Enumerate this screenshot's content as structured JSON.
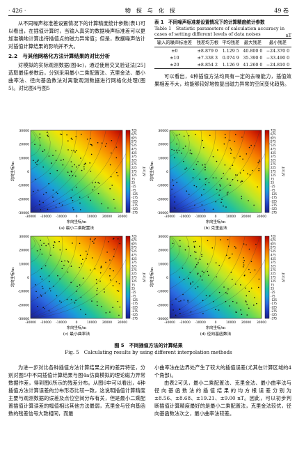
{
  "header": {
    "page": "· 426 ·",
    "journal": "物　探　与　化　探",
    "volume": "49 卷"
  },
  "left_top": {
    "p1": "从不同噪声标准差设置情况下的计算精度统计参数(表1)可以看出，在插值计算时，当输入真实的数据噪声标准差可以更加准确地计算出待插值点的磁力异常值；但是，数据噪声估计对插值计算结果的影响并不大。",
    "section": "2.2　与其他网格化方法计算结果的对比分析",
    "p2": "对模拟的实际观测数据(图4c)，通过使用交叉验证法[25]选取最佳参数后，分别采用最小二乘配置法、克里金法、最小曲率法、径向基函数法对离散观测数据进行网格化处理(图5)。对比图4与图5"
  },
  "table1": {
    "title_cn": "表 1　不同噪声标准差设置情况下的计算精度统计参数",
    "title_en": "Table 1　Statistic parameters of calculation accuracy in cases of setting different levels of data noises",
    "unit": "nT",
    "headers": [
      "输入的噪声标准差",
      "残差均方根",
      "平均残差",
      "最大残差",
      "最小残差"
    ],
    "rows": [
      [
        "±0",
        "±8.879 0",
        "1.129 5",
        "40.800 0",
        "−24.370 0"
      ],
      [
        "±10",
        "±7.338 3",
        "0.074 9",
        "35.390 0",
        "−33.490 0"
      ],
      [
        "±20",
        "±8.854 2",
        "1.126 9",
        "41.260 0",
        "−24.810 0"
      ]
    ]
  },
  "right_top": {
    "p1": "可以看出，4种插值方法均具有一定的去噪能力，插值效果相差不大，均能够较好地恢复出磁力异常的空间变化趋势。"
  },
  "figure": {
    "panels": [
      {
        "label": "(a) 最小二乘配置法"
      },
      {
        "label": "(b) 克里金法"
      },
      {
        "label": "(c) 最小曲率法"
      },
      {
        "label": "(d) 径向基函数法"
      }
    ],
    "xlabel": "东向坐标/m",
    "ylabel": "北向坐标/m",
    "xticks": [
      "-30000",
      "-20000",
      "-10000",
      "0",
      "10000",
      "20000",
      "30000"
    ],
    "yticks": [
      "30000",
      "20000",
      "10000",
      "0",
      "-10000",
      "-20000",
      "-30000"
    ],
    "colorbar_ticks": [
      "725",
      "675",
      "625",
      "575",
      "525",
      "475",
      "425",
      "375",
      "325",
      "275",
      "225",
      "175",
      "125",
      "75",
      "25",
      "-25",
      "-75",
      "-125",
      "-175",
      "-225",
      "-275",
      "-325",
      "-375"
    ],
    "colorbar_unit": "ΔT/nT",
    "colors": [
      "#b30000",
      "#e03a00",
      "#f57a00",
      "#f9b400",
      "#f5e300",
      "#b6e62e",
      "#5cd65c",
      "#20c0a0",
      "#1aa0d8",
      "#2c6be0",
      "#1f3cc0",
      "#1a1f8a"
    ],
    "caption_cn": "图 5　不同插值方法的计算结果",
    "caption_en": "Fig. 5　Calculating results by using different interpolation methods"
  },
  "bottom_left": {
    "p1": "为进一步对比各种插值方法计算结果之间的差异特征，分别对图5中不同插值计算结果与图4a仿真模拟的理论磁力异常数据作差，得到图6所示的残差分布。从图6中可以看出，4种插值方法计算误差的分布形态比较一致，这说明插值计算精度主要与观测数据的误差及点位空间分布有关，但是最小二乘配置插值计算误差的幅值相比其他方法最弱，克里金与径向基函数的残差信号大致相同，而最"
  },
  "bottom_right": {
    "p1": "小曲率法在边界处产生了较大的插值误差(尤其在计算区域的4个角部)。",
    "p2": "由表2可见，最小二乘配置法、克里金法、最小曲率法与径向基函数法的插值结果的均方根误差分别为±8.56、±8.68、±19.21、±9.00 nT。因此，可以初步判断插值计算精度最好的是最小二乘配置法，克里金法较优，径向基函数法次之，最小曲率法较差。"
  }
}
